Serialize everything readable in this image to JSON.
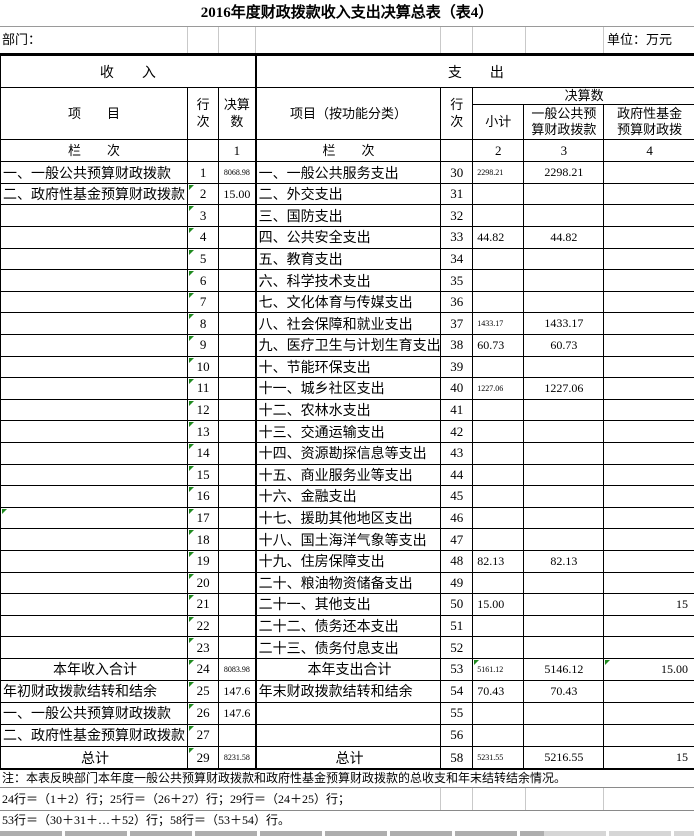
{
  "title": "2016年度财政拨款收入支出决算总表（表4）",
  "meta": {
    "department_label": "部门：",
    "unit_label": "单位：万元"
  },
  "sections": {
    "income": "收　　入",
    "expenditure": "支　　出"
  },
  "headers": {
    "income_item": "项　　目",
    "income_row_no": "行\n次",
    "income_amount": "决算\n数",
    "expense_item": "项目（按功能分类）",
    "expense_row_no": "行\n次",
    "amount_group": "决算数",
    "subtotal": "小计",
    "general_budget": "一般公共预\n算财政拨款",
    "gov_fund": "政府性基金\n预算财政拨",
    "lanci_left": "栏　　次",
    "lanci_right": "栏　　次",
    "col_nums": {
      "c1": "1",
      "c2": "2",
      "c3": "3",
      "c4": "4"
    }
  },
  "colors": {
    "border": "#000000",
    "grid_gray": "#c9c9c9",
    "triangle_green": "#1f8a1f"
  },
  "rows": [
    {
      "left": {
        "item": "一、一般公共预算财政拨款",
        "no": "1",
        "value": "8068.98",
        "small": true
      },
      "right": {
        "item": "一、一般公共服务支出",
        "no": "30",
        "subtotal": "2298.21",
        "subtotal_small": true,
        "general": "2298.21"
      }
    },
    {
      "left": {
        "item": "二、政府性基金预算财政拨款",
        "no": "2",
        "value": "15.00",
        "tri": true
      },
      "right": {
        "item": "二、外交支出",
        "no": "31"
      }
    },
    {
      "left": {
        "no": "3",
        "tri": true
      },
      "right": {
        "item": "三、国防支出",
        "no": "32"
      }
    },
    {
      "left": {
        "no": "4",
        "tri": true
      },
      "right": {
        "item": "四、公共安全支出",
        "no": "33",
        "subtotal": "44.82",
        "general": "44.82"
      }
    },
    {
      "left": {
        "no": "5",
        "tri": true
      },
      "right": {
        "item": "五、教育支出",
        "no": "34"
      }
    },
    {
      "left": {
        "no": "6",
        "tri": true
      },
      "right": {
        "item": "六、科学技术支出",
        "no": "35"
      }
    },
    {
      "left": {
        "no": "7",
        "tri": true
      },
      "right": {
        "item": "七、文化体育与传媒支出",
        "no": "36"
      }
    },
    {
      "left": {
        "no": "8",
        "tri": true
      },
      "right": {
        "item": "八、社会保障和就业支出",
        "no": "37",
        "subtotal": "1433.17",
        "subtotal_small": true,
        "general": "1433.17"
      }
    },
    {
      "left": {
        "no": "9",
        "tri": true
      },
      "right": {
        "item": "九、医疗卫生与计划生育支出",
        "no": "38",
        "subtotal": "60.73",
        "general": "60.73"
      }
    },
    {
      "left": {
        "no": "10",
        "tri": true
      },
      "right": {
        "item": "十、节能环保支出",
        "no": "39"
      }
    },
    {
      "left": {
        "no": "11",
        "tri": true
      },
      "right": {
        "item": "十一、城乡社区支出",
        "no": "40",
        "subtotal": "1227.06",
        "subtotal_small": true,
        "general": "1227.06"
      }
    },
    {
      "left": {
        "no": "12",
        "tri": true
      },
      "right": {
        "item": "十二、农林水支出",
        "no": "41"
      }
    },
    {
      "left": {
        "no": "13",
        "tri": true
      },
      "right": {
        "item": "十三、交通运输支出",
        "no": "42"
      }
    },
    {
      "left": {
        "no": "14",
        "tri": true
      },
      "right": {
        "item": "十四、资源勘探信息等支出",
        "no": "43"
      }
    },
    {
      "left": {
        "no": "15",
        "tri": true
      },
      "right": {
        "item": "十五、商业服务业等支出",
        "no": "44"
      }
    },
    {
      "left": {
        "no": "16",
        "tri": true
      },
      "right": {
        "item": "十六、金融支出",
        "no": "45"
      }
    },
    {
      "left": {
        "no": "17",
        "tri": true,
        "item_tri": true
      },
      "right": {
        "item": "十七、援助其他地区支出",
        "no": "46"
      }
    },
    {
      "left": {
        "no": "18",
        "tri": true
      },
      "right": {
        "item": "十八、国土海洋气象等支出",
        "no": "47"
      }
    },
    {
      "left": {
        "no": "19",
        "tri": true
      },
      "right": {
        "item": "十九、住房保障支出",
        "no": "48",
        "subtotal": "82.13",
        "general": "82.13"
      }
    },
    {
      "left": {
        "no": "20",
        "tri": true
      },
      "right": {
        "item": "二十、粮油物资储备支出",
        "no": "49"
      }
    },
    {
      "left": {
        "no": "21",
        "tri": true
      },
      "right": {
        "item": "二十一、其他支出",
        "no": "50",
        "subtotal": "15.00",
        "fund": "15"
      }
    },
    {
      "left": {
        "no": "22",
        "tri": true
      },
      "right": {
        "item": "二十二、债务还本支出",
        "no": "51"
      }
    },
    {
      "left": {
        "no": "23",
        "tri": true
      },
      "right": {
        "item": "二十三、债务付息支出",
        "no": "52"
      }
    },
    {
      "left": {
        "item": "本年收入合计",
        "center": true,
        "no": "24",
        "value": "8083.98",
        "small": true,
        "tri": true
      },
      "right": {
        "item": "本年支出合计",
        "center": true,
        "no": "53",
        "subtotal": "5161.12",
        "subtotal_small": true,
        "subtotal_tri": true,
        "general": "5146.12",
        "fund": "15.00",
        "fund_tri": true
      }
    },
    {
      "left": {
        "item": "年初财政拨款结转和结余",
        "no": "25",
        "value": "147.6",
        "tri": true
      },
      "right": {
        "item": "年末财政拨款结转和结余",
        "no": "54",
        "subtotal": "70.43",
        "general": "70.43"
      }
    },
    {
      "left": {
        "item": "一、一般公共预算财政拨款",
        "no": "26",
        "value": "147.6",
        "tri": true
      },
      "right": {
        "no": "55"
      }
    },
    {
      "left": {
        "item": "二、政府性基金预算财政拨款",
        "no": "27",
        "tri": true
      },
      "right": {
        "no": "56"
      }
    },
    {
      "left": {
        "item": "总计",
        "center": true,
        "no": "29",
        "value": "8231.58",
        "small": true,
        "tri": true
      },
      "right": {
        "item": "总计",
        "center": true,
        "no": "58",
        "subtotal": "5231.55",
        "subtotal_small": true,
        "general": "5216.55",
        "fund": "15"
      }
    }
  ],
  "notes": {
    "line1": "注：本表反映部门本年度一般公共预算财政拨款和政府性基金预算财政拨款的总收支和年末结转结余情况。",
    "line2": "24行＝（1＋2）行；25行＝（26＋27）行；29行＝（24＋25）行；",
    "line3": "53行＝（30＋31＋…＋52）行；58行＝（53＋54）行。"
  }
}
